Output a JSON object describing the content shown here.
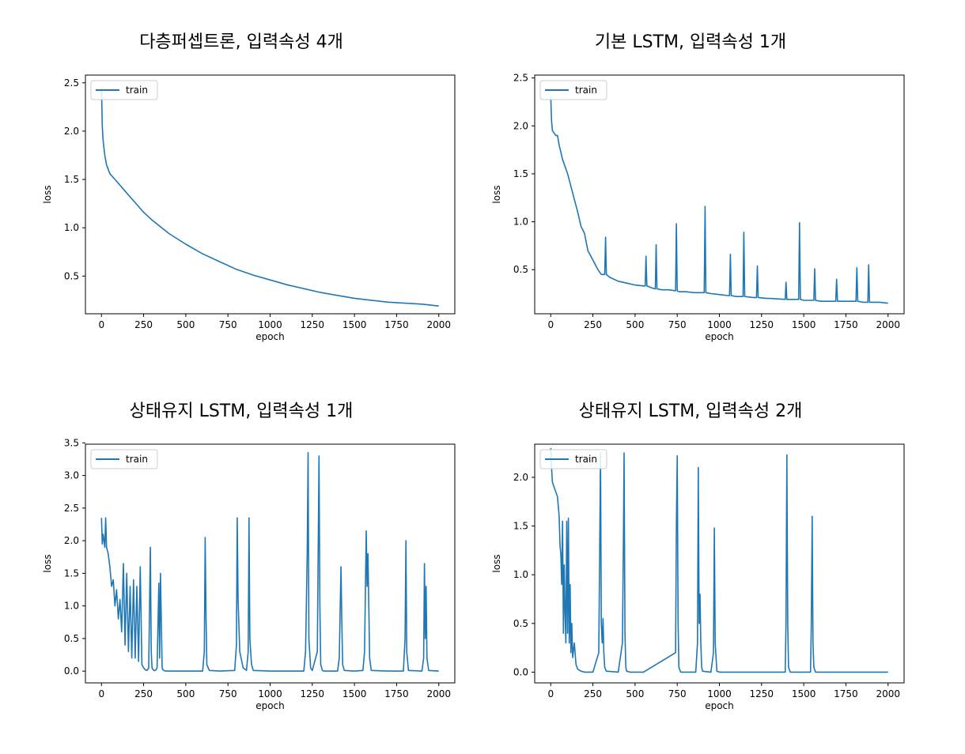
{
  "colors": {
    "line": "#1f77b4",
    "axis": "#000000",
    "legend_border": "#cccccc"
  },
  "charts": [
    {
      "title": "다층퍼셉트론, 입력속성 4개"
    },
    {
      "title": "기본 LSTM, 입력속성 1개"
    },
    {
      "title": "상태유지 LSTM, 입력속성 1개"
    },
    {
      "title": "상태유지 LSTM, 입력속성 2개"
    }
  ],
  "chart_data": [
    {
      "type": "line",
      "title": "다층퍼셉트론, 입력속성 4개",
      "xlabel": "epoch",
      "ylabel": "loss",
      "xlim": [
        -95,
        2095
      ],
      "ylim": [
        0.11,
        2.58
      ],
      "xticks": [
        0,
        250,
        500,
        750,
        1000,
        1250,
        1500,
        1750,
        2000
      ],
      "yticks": [
        0.5,
        1.0,
        1.5,
        2.0,
        2.5
      ],
      "legend": {
        "position": "upper left",
        "entries": [
          "train"
        ]
      },
      "series": [
        {
          "name": "train",
          "x": [
            0,
            5,
            10,
            20,
            30,
            50,
            80,
            100,
            150,
            200,
            250,
            300,
            400,
            500,
            600,
            700,
            800,
            900,
            1000,
            1100,
            1200,
            1300,
            1400,
            1500,
            1600,
            1700,
            1800,
            1900,
            2000
          ],
          "y": [
            2.45,
            2.05,
            1.9,
            1.75,
            1.65,
            1.56,
            1.5,
            1.46,
            1.36,
            1.26,
            1.16,
            1.08,
            0.94,
            0.83,
            0.73,
            0.65,
            0.57,
            0.51,
            0.46,
            0.41,
            0.37,
            0.33,
            0.3,
            0.27,
            0.25,
            0.23,
            0.22,
            0.21,
            0.19
          ]
        }
      ]
    },
    {
      "type": "line",
      "title": "기본 LSTM, 입력속성 1개",
      "xlabel": "epoch",
      "ylabel": "loss",
      "xlim": [
        -95,
        2095
      ],
      "ylim": [
        0.04,
        2.53
      ],
      "xticks": [
        0,
        250,
        500,
        750,
        1000,
        1250,
        1500,
        1750,
        2000
      ],
      "yticks": [
        0.5,
        1.0,
        1.5,
        2.0,
        2.5
      ],
      "legend": {
        "position": "upper left",
        "entries": [
          "train"
        ]
      },
      "series": [
        {
          "name": "train",
          "x": [
            0,
            5,
            10,
            30,
            40,
            50,
            70,
            100,
            130,
            160,
            180,
            200,
            220,
            250,
            280,
            300,
            320,
            325,
            330,
            350,
            400,
            450,
            500,
            550,
            560,
            565,
            570,
            600,
            620,
            625,
            630,
            660,
            700,
            740,
            745,
            750,
            760,
            800,
            850,
            900,
            910,
            915,
            920,
            950,
            1000,
            1050,
            1060,
            1065,
            1070,
            1100,
            1140,
            1145,
            1150,
            1200,
            1220,
            1225,
            1230,
            1280,
            1300,
            1390,
            1395,
            1400,
            1470,
            1475,
            1480,
            1500,
            1560,
            1565,
            1570,
            1600,
            1690,
            1695,
            1700,
            1750,
            1810,
            1815,
            1820,
            1850,
            1880,
            1885,
            1890,
            1950,
            2000
          ],
          "y": [
            2.3,
            2.05,
            1.95,
            1.9,
            1.9,
            1.8,
            1.65,
            1.5,
            1.3,
            1.1,
            0.95,
            0.88,
            0.7,
            0.6,
            0.5,
            0.45,
            0.45,
            0.84,
            0.45,
            0.42,
            0.38,
            0.36,
            0.34,
            0.33,
            0.33,
            0.64,
            0.33,
            0.31,
            0.3,
            0.76,
            0.3,
            0.29,
            0.29,
            0.28,
            0.98,
            0.28,
            0.27,
            0.27,
            0.26,
            0.26,
            0.26,
            1.16,
            0.26,
            0.25,
            0.24,
            0.23,
            0.23,
            0.66,
            0.23,
            0.22,
            0.22,
            0.89,
            0.22,
            0.21,
            0.21,
            0.54,
            0.21,
            0.2,
            0.2,
            0.19,
            0.37,
            0.19,
            0.19,
            0.99,
            0.19,
            0.18,
            0.18,
            0.51,
            0.18,
            0.17,
            0.17,
            0.4,
            0.17,
            0.17,
            0.17,
            0.52,
            0.17,
            0.16,
            0.16,
            0.55,
            0.16,
            0.16,
            0.15
          ]
        }
      ]
    },
    {
      "type": "line",
      "title": "상태유지 LSTM, 입력속성 1개",
      "xlabel": "epoch",
      "ylabel": "loss",
      "xlim": [
        -95,
        2095
      ],
      "ylim": [
        -0.18,
        3.48
      ],
      "xticks": [
        0,
        250,
        500,
        750,
        1000,
        1250,
        1500,
        1750,
        2000
      ],
      "yticks": [
        0.0,
        0.5,
        1.0,
        1.5,
        2.0,
        2.5,
        3.0,
        3.5
      ],
      "legend": {
        "position": "upper left",
        "entries": [
          "train"
        ]
      },
      "series": [
        {
          "name": "train",
          "x": [
            0,
            5,
            10,
            20,
            25,
            30,
            40,
            50,
            60,
            70,
            80,
            90,
            100,
            110,
            120,
            130,
            140,
            150,
            160,
            170,
            180,
            190,
            200,
            210,
            220,
            230,
            240,
            250,
            260,
            270,
            280,
            290,
            295,
            300,
            310,
            320,
            330,
            340,
            345,
            350,
            360,
            365,
            370,
            380,
            400,
            600,
            610,
            615,
            620,
            625,
            640,
            700,
            790,
            800,
            805,
            810,
            820,
            840,
            860,
            870,
            875,
            880,
            890,
            900,
            1000,
            1200,
            1210,
            1220,
            1225,
            1230,
            1240,
            1250,
            1280,
            1290,
            1295,
            1300,
            1310,
            1320,
            1400,
            1410,
            1420,
            1425,
            1430,
            1440,
            1500,
            1550,
            1560,
            1570,
            1575,
            1580,
            1590,
            1600,
            1700,
            1790,
            1800,
            1805,
            1810,
            1820,
            1900,
            1910,
            1915,
            1920,
            1925,
            1930,
            1940,
            2000
          ],
          "y": [
            2.35,
            1.95,
            2.1,
            1.9,
            2.35,
            1.9,
            1.8,
            1.6,
            1.3,
            1.4,
            1.0,
            1.25,
            0.8,
            1.1,
            0.6,
            1.65,
            0.4,
            1.5,
            0.3,
            1.3,
            0.2,
            1.4,
            0.2,
            1.3,
            0.15,
            1.6,
            0.1,
            0.05,
            0.02,
            0.01,
            0.05,
            1.9,
            0.3,
            0.05,
            0.01,
            0.01,
            0.05,
            1.35,
            0.2,
            1.5,
            0.05,
            0.02,
            0.01,
            0.0,
            0.0,
            0.0,
            0.3,
            2.05,
            0.8,
            0.1,
            0.01,
            0.0,
            0.01,
            0.4,
            2.35,
            1.1,
            0.3,
            0.05,
            0.01,
            0.3,
            2.35,
            0.5,
            0.1,
            0.01,
            0.0,
            0.0,
            0.3,
            1.8,
            3.35,
            0.5,
            0.05,
            0.01,
            0.3,
            3.3,
            1.0,
            0.1,
            0.01,
            0.0,
            0.0,
            0.2,
            1.6,
            0.8,
            0.1,
            0.01,
            0.0,
            0.01,
            0.3,
            2.15,
            1.3,
            1.8,
            0.2,
            0.01,
            0.0,
            0.0,
            0.5,
            2.0,
            0.3,
            0.01,
            0.0,
            0.2,
            1.65,
            0.5,
            1.3,
            0.2,
            0.01,
            0.0
          ]
        }
      ]
    },
    {
      "type": "line",
      "title": "상태유지 LSTM, 입력속성 2개",
      "xlabel": "epoch",
      "ylabel": "loss",
      "xlim": [
        -95,
        2095
      ],
      "ylim": [
        -0.11,
        2.34
      ],
      "xticks": [
        0,
        250,
        500,
        750,
        1000,
        1250,
        1500,
        1750,
        2000
      ],
      "yticks": [
        0.0,
        0.5,
        1.0,
        1.5,
        2.0
      ],
      "legend": {
        "position": "upper left",
        "entries": [
          "train"
        ]
      },
      "series": [
        {
          "name": "train",
          "x": [
            0,
            5,
            10,
            20,
            30,
            40,
            50,
            55,
            60,
            65,
            70,
            75,
            80,
            85,
            90,
            95,
            100,
            105,
            110,
            115,
            120,
            125,
            130,
            140,
            150,
            160,
            170,
            180,
            200,
            250,
            285,
            290,
            295,
            300,
            305,
            310,
            315,
            320,
            330,
            400,
            425,
            430,
            435,
            440,
            445,
            450,
            470,
            550,
            740,
            745,
            750,
            755,
            760,
            770,
            860,
            870,
            875,
            880,
            885,
            890,
            895,
            900,
            950,
            965,
            970,
            975,
            985,
            1000,
            1390,
            1395,
            1400,
            1405,
            1410,
            1420,
            1540,
            1545,
            1550,
            1555,
            1560,
            1570,
            2000
          ],
          "y": [
            2.3,
            2.1,
            1.95,
            1.9,
            1.85,
            1.8,
            1.6,
            1.3,
            1.2,
            0.9,
            1.55,
            0.4,
            1.1,
            0.6,
            0.3,
            1.55,
            0.4,
            1.58,
            0.3,
            0.9,
            0.2,
            0.5,
            0.15,
            0.3,
            0.08,
            0.03,
            0.02,
            0.01,
            0.0,
            0.0,
            0.2,
            1.2,
            2.25,
            0.5,
            0.3,
            0.55,
            0.2,
            0.05,
            0.01,
            0.0,
            0.3,
            1.2,
            2.25,
            0.4,
            0.05,
            0.01,
            0.0,
            0.0,
            0.2,
            1.5,
            2.22,
            0.5,
            0.05,
            0.0,
            0.0,
            0.3,
            2.1,
            0.5,
            0.8,
            0.3,
            0.05,
            0.01,
            0.0,
            0.2,
            1.48,
            0.3,
            0.01,
            0.0,
            0.0,
            0.5,
            2.23,
            0.5,
            0.05,
            0.0,
            0.0,
            0.5,
            1.6,
            0.3,
            0.05,
            0.0,
            0.0
          ]
        }
      ]
    }
  ]
}
